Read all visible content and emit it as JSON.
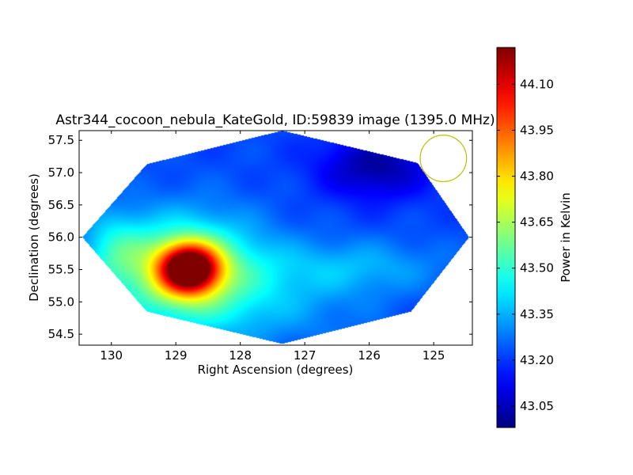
{
  "chart_data": {
    "type": "heatmap",
    "title": "Astr344_cocoon_nebula_KateGold, ID:59839 image (1395.0 MHz)",
    "xlabel": "Right Ascension (degrees)",
    "ylabel": "Declination (degrees)",
    "xlim": [
      130.5,
      124.4
    ],
    "ylim": [
      54.33,
      57.65
    ],
    "x_ticks": [
      "130",
      "129",
      "128",
      "127",
      "126",
      "125"
    ],
    "y_ticks": [
      "54.5",
      "55.0",
      "55.5",
      "56.0",
      "56.5",
      "57.0",
      "57.5"
    ],
    "colorbar": {
      "label": "Power in Kelvin",
      "range": [
        42.98,
        44.22
      ],
      "ticks": [
        "43.05",
        "43.20",
        "43.35",
        "43.50",
        "43.65",
        "43.80",
        "43.95",
        "44.10"
      ],
      "colormap": "jet"
    },
    "map_outline": [
      [
        130.45,
        56.0
      ],
      [
        129.45,
        57.13
      ],
      [
        127.35,
        57.65
      ],
      [
        125.25,
        57.15
      ],
      [
        124.45,
        56.0
      ],
      [
        125.35,
        54.85
      ],
      [
        127.35,
        54.35
      ],
      [
        129.45,
        54.85
      ]
    ],
    "field": {
      "background_level": 43.22,
      "sources": [
        {
          "ra": 128.8,
          "dec": 55.52,
          "peak": 44.15,
          "sigma_ra": 0.32,
          "sigma_dec": 0.26
        },
        {
          "ra": 128.85,
          "dec": 55.45,
          "peak": 43.66,
          "sigma_ra": 0.85,
          "sigma_dec": 0.6
        },
        {
          "ra": 129.95,
          "dec": 55.8,
          "peak": 43.38,
          "sigma_ra": 0.35,
          "sigma_dec": 0.4
        },
        {
          "ra": 126.2,
          "dec": 55.55,
          "peak": 43.34,
          "sigma_ra": 1.0,
          "sigma_dec": 0.3
        },
        {
          "ra": 127.2,
          "dec": 54.95,
          "peak": 43.3,
          "sigma_ra": 1.0,
          "sigma_dec": 0.5
        },
        {
          "ra": 125.9,
          "dec": 57.1,
          "peak": 43.02,
          "sigma_ra": 0.6,
          "sigma_dec": 0.35
        }
      ]
    },
    "beam_circle": {
      "ra": 124.85,
      "dec": 57.22,
      "radius_deg": 0.36,
      "color": "#bfbf00"
    }
  }
}
